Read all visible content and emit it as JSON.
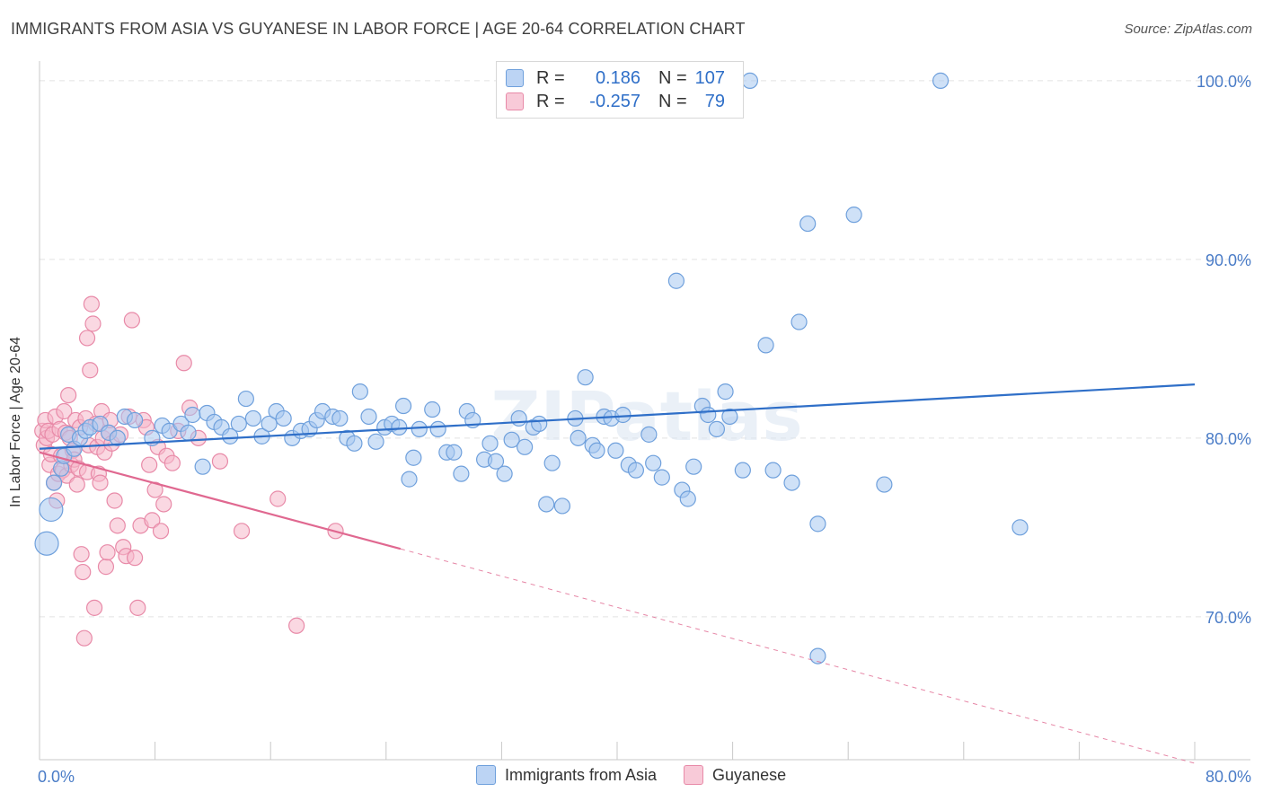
{
  "title": "IMMIGRANTS FROM ASIA VS GUYANESE IN LABOR FORCE | AGE 20-64 CORRELATION CHART",
  "source": "Source: ZipAtlas.com",
  "watermark": "ZIPatlas",
  "legend": {
    "r_label": "R =",
    "n_label": "N =",
    "series": [
      {
        "r": "0.186",
        "n": "107"
      },
      {
        "r": "-0.257",
        "n": "79"
      }
    ]
  },
  "colors": {
    "blue_fill": "#a8c8f0",
    "blue_stroke": "#6fa0dc",
    "blue_line": "#2f6fc8",
    "pink_fill": "#f5b8cb",
    "pink_stroke": "#e88aa8",
    "pink_line": "#e06890",
    "axis_text": "#4a7cc7",
    "grid": "#e2e2e2"
  },
  "chart_data": {
    "type": "scatter",
    "title": "IMMIGRANTS FROM ASIA VS GUYANESE IN LABOR FORCE | AGE 20-64 CORRELATION CHART",
    "xlabel": "",
    "ylabel": "In Labor Force | Age 20-64",
    "xlim": [
      0,
      80
    ],
    "ylim": [
      62,
      101
    ],
    "x_tick_labels": [
      "0.0%",
      "80.0%"
    ],
    "y_ticks": [
      70,
      80,
      90,
      100
    ],
    "y_tick_labels": [
      "70.0%",
      "80.0%",
      "90.0%",
      "100.0%"
    ],
    "grid": true,
    "legend_position": "top-center",
    "series": [
      {
        "name": "Immigrants from Asia",
        "color": "#a8c8f0",
        "trend": {
          "x": [
            0,
            80
          ],
          "y": [
            79.4,
            83.0
          ],
          "dashed_from": null
        },
        "points": [
          [
            0.5,
            74.1
          ],
          [
            0.8,
            76.0
          ],
          [
            1.0,
            77.5
          ],
          [
            1.5,
            78.3
          ],
          [
            1.7,
            79.0
          ],
          [
            2.0,
            80.2
          ],
          [
            2.4,
            79.4
          ],
          [
            2.8,
            80.0
          ],
          [
            3.2,
            80.4
          ],
          [
            3.5,
            80.6
          ],
          [
            4.2,
            80.8
          ],
          [
            4.8,
            80.3
          ],
          [
            5.4,
            80.0
          ],
          [
            5.9,
            81.2
          ],
          [
            6.6,
            81.0
          ],
          [
            7.8,
            80.0
          ],
          [
            8.5,
            80.7
          ],
          [
            9.0,
            80.4
          ],
          [
            9.8,
            80.8
          ],
          [
            10.3,
            80.3
          ],
          [
            10.6,
            81.3
          ],
          [
            11.3,
            78.4
          ],
          [
            11.6,
            81.4
          ],
          [
            12.1,
            80.9
          ],
          [
            12.6,
            80.6
          ],
          [
            13.2,
            80.1
          ],
          [
            13.8,
            80.8
          ],
          [
            14.3,
            82.2
          ],
          [
            14.8,
            81.1
          ],
          [
            15.4,
            80.1
          ],
          [
            15.9,
            80.8
          ],
          [
            16.4,
            81.5
          ],
          [
            16.9,
            81.1
          ],
          [
            17.5,
            80.0
          ],
          [
            18.1,
            80.4
          ],
          [
            18.7,
            80.5
          ],
          [
            19.2,
            81.0
          ],
          [
            19.6,
            81.5
          ],
          [
            20.3,
            81.2
          ],
          [
            20.8,
            81.1
          ],
          [
            21.3,
            80.0
          ],
          [
            21.8,
            79.7
          ],
          [
            22.2,
            82.6
          ],
          [
            22.8,
            81.2
          ],
          [
            23.3,
            79.8
          ],
          [
            23.9,
            80.6
          ],
          [
            24.4,
            80.8
          ],
          [
            24.9,
            80.6
          ],
          [
            25.2,
            81.8
          ],
          [
            25.6,
            77.7
          ],
          [
            25.9,
            78.9
          ],
          [
            26.3,
            80.5
          ],
          [
            27.2,
            81.6
          ],
          [
            27.6,
            80.5
          ],
          [
            28.2,
            79.2
          ],
          [
            28.7,
            79.2
          ],
          [
            29.2,
            78.0
          ],
          [
            29.6,
            81.5
          ],
          [
            30.0,
            81.0
          ],
          [
            30.8,
            78.8
          ],
          [
            31.2,
            79.7
          ],
          [
            31.6,
            78.7
          ],
          [
            32.2,
            78.0
          ],
          [
            32.7,
            79.9
          ],
          [
            33.2,
            81.1
          ],
          [
            33.6,
            79.5
          ],
          [
            34.2,
            80.6
          ],
          [
            34.6,
            80.8
          ],
          [
            35.1,
            76.3
          ],
          [
            35.5,
            78.6
          ],
          [
            36.2,
            76.2
          ],
          [
            37.1,
            81.1
          ],
          [
            37.3,
            80.0
          ],
          [
            37.8,
            83.4
          ],
          [
            38.3,
            79.6
          ],
          [
            38.6,
            79.3
          ],
          [
            39.1,
            81.2
          ],
          [
            39.6,
            81.1
          ],
          [
            39.9,
            79.3
          ],
          [
            40.4,
            81.3
          ],
          [
            40.8,
            78.5
          ],
          [
            41.3,
            78.2
          ],
          [
            42.2,
            80.2
          ],
          [
            42.5,
            78.6
          ],
          [
            43.1,
            77.8
          ],
          [
            44.1,
            88.8
          ],
          [
            44.5,
            77.1
          ],
          [
            44.9,
            76.6
          ],
          [
            45.3,
            78.4
          ],
          [
            45.9,
            81.8
          ],
          [
            46.3,
            81.3
          ],
          [
            46.9,
            80.5
          ],
          [
            47.5,
            82.6
          ],
          [
            47.8,
            81.2
          ],
          [
            48.7,
            78.2
          ],
          [
            49.2,
            100.0
          ],
          [
            50.3,
            85.2
          ],
          [
            50.8,
            78.2
          ],
          [
            52.1,
            77.5
          ],
          [
            52.6,
            86.5
          ],
          [
            53.2,
            92.0
          ],
          [
            53.9,
            75.2
          ],
          [
            53.9,
            67.8
          ],
          [
            56.4,
            92.5
          ],
          [
            58.5,
            77.4
          ],
          [
            62.4,
            100.0
          ],
          [
            67.9,
            75.0
          ]
        ]
      },
      {
        "name": "Guyanese",
        "color": "#f5b8cb",
        "trend": {
          "x": [
            0,
            25
          ],
          "y": [
            79.2,
            73.8
          ],
          "dashed_to": [
            80,
            61.8
          ]
        },
        "points": [
          [
            0.2,
            80.4
          ],
          [
            0.3,
            79.6
          ],
          [
            0.4,
            81.0
          ],
          [
            0.5,
            80.0
          ],
          [
            0.6,
            80.4
          ],
          [
            0.7,
            78.5
          ],
          [
            0.8,
            79.1
          ],
          [
            0.9,
            80.2
          ],
          [
            1.0,
            77.5
          ],
          [
            1.1,
            81.2
          ],
          [
            1.2,
            76.5
          ],
          [
            1.3,
            78.0
          ],
          [
            1.4,
            80.5
          ],
          [
            1.5,
            79.0
          ],
          [
            1.6,
            78.2
          ],
          [
            1.7,
            81.5
          ],
          [
            1.8,
            80.3
          ],
          [
            1.9,
            77.9
          ],
          [
            2.0,
            82.4
          ],
          [
            2.1,
            80.0
          ],
          [
            2.2,
            78.5
          ],
          [
            2.3,
            79.3
          ],
          [
            2.4,
            78.8
          ],
          [
            2.5,
            81.0
          ],
          [
            2.6,
            77.4
          ],
          [
            2.7,
            78.3
          ],
          [
            2.8,
            80.6
          ],
          [
            2.9,
            73.5
          ],
          [
            3.0,
            72.5
          ],
          [
            3.1,
            68.8
          ],
          [
            3.2,
            81.1
          ],
          [
            3.3,
            78.1
          ],
          [
            3.4,
            79.6
          ],
          [
            3.5,
            83.8
          ],
          [
            3.6,
            87.5
          ],
          [
            3.7,
            86.4
          ],
          [
            3.8,
            70.5
          ],
          [
            3.9,
            80.8
          ],
          [
            4.0,
            79.5
          ],
          [
            4.1,
            78.0
          ],
          [
            4.2,
            77.5
          ],
          [
            4.3,
            81.5
          ],
          [
            4.4,
            80.0
          ],
          [
            4.5,
            79.2
          ],
          [
            4.6,
            72.8
          ],
          [
            4.7,
            73.6
          ],
          [
            4.8,
            80.3
          ],
          [
            4.9,
            81.0
          ],
          [
            5.0,
            79.7
          ],
          [
            5.2,
            76.5
          ],
          [
            5.4,
            75.1
          ],
          [
            5.6,
            80.2
          ],
          [
            5.8,
            73.9
          ],
          [
            6.0,
            73.4
          ],
          [
            6.2,
            81.2
          ],
          [
            6.4,
            86.6
          ],
          [
            6.6,
            73.3
          ],
          [
            6.8,
            70.5
          ],
          [
            7.0,
            75.1
          ],
          [
            7.2,
            81.0
          ],
          [
            7.4,
            80.6
          ],
          [
            7.6,
            78.5
          ],
          [
            7.8,
            75.4
          ],
          [
            8.0,
            77.1
          ],
          [
            8.2,
            79.5
          ],
          [
            8.4,
            74.8
          ],
          [
            8.6,
            76.3
          ],
          [
            8.8,
            79.0
          ],
          [
            9.2,
            78.6
          ],
          [
            9.6,
            80.4
          ],
          [
            10.0,
            84.2
          ],
          [
            10.4,
            81.7
          ],
          [
            11.0,
            80.0
          ],
          [
            12.5,
            78.7
          ],
          [
            14.0,
            74.8
          ],
          [
            16.5,
            76.6
          ],
          [
            17.8,
            69.5
          ],
          [
            20.5,
            74.8
          ],
          [
            3.3,
            85.6
          ]
        ]
      }
    ]
  },
  "bottom_legend": [
    "Immigrants from Asia",
    "Guyanese"
  ]
}
